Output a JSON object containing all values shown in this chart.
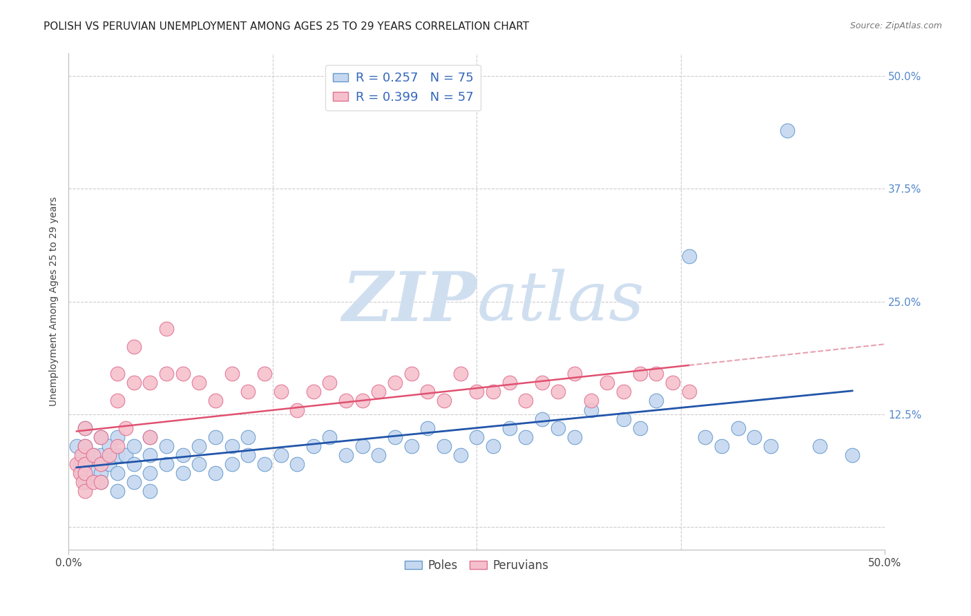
{
  "title": "POLISH VS PERUVIAN UNEMPLOYMENT AMONG AGES 25 TO 29 YEARS CORRELATION CHART",
  "source": "Source: ZipAtlas.com",
  "ylabel": "Unemployment Among Ages 25 to 29 years",
  "xlim": [
    0.0,
    0.5
  ],
  "ylim": [
    -0.025,
    0.525
  ],
  "yticks_right": [
    0.0,
    0.125,
    0.25,
    0.375,
    0.5
  ],
  "ytick_labels_right": [
    "",
    "12.5%",
    "25.0%",
    "37.5%",
    "50.0%"
  ],
  "grid_color": "#cccccc",
  "background_color": "#ffffff",
  "poles_color": "#c5d8f0",
  "poles_edge_color": "#6699cc",
  "peruvians_color": "#f5c0cc",
  "peruvians_edge_color": "#e07090",
  "trend_poles_color": "#2255aa",
  "trend_peruvians_solid_color": "#e05070",
  "trend_peruvians_dash_color": "#e8a0b0",
  "legend_r_poles": "R = 0.257",
  "legend_n_poles": "N = 75",
  "legend_r_peruvians": "R = 0.399",
  "legend_n_peruvians": "N = 57",
  "watermark_zip": "ZIP",
  "watermark_atlas": "atlas",
  "watermark_color": "#d0dff0",
  "title_fontsize": 11,
  "axis_label_fontsize": 10,
  "tick_fontsize": 11,
  "poles_x": [
    0.005,
    0.007,
    0.008,
    0.009,
    0.01,
    0.01,
    0.01,
    0.01,
    0.01,
    0.015,
    0.015,
    0.02,
    0.02,
    0.02,
    0.02,
    0.02,
    0.025,
    0.025,
    0.03,
    0.03,
    0.03,
    0.03,
    0.035,
    0.04,
    0.04,
    0.04,
    0.05,
    0.05,
    0.05,
    0.05,
    0.06,
    0.06,
    0.07,
    0.07,
    0.08,
    0.08,
    0.09,
    0.09,
    0.1,
    0.1,
    0.11,
    0.11,
    0.12,
    0.13,
    0.14,
    0.15,
    0.16,
    0.17,
    0.18,
    0.19,
    0.2,
    0.21,
    0.22,
    0.23,
    0.24,
    0.25,
    0.26,
    0.27,
    0.28,
    0.29,
    0.3,
    0.31,
    0.32,
    0.34,
    0.35,
    0.36,
    0.38,
    0.39,
    0.4,
    0.41,
    0.42,
    0.43,
    0.44,
    0.46,
    0.48
  ],
  "poles_y": [
    0.09,
    0.07,
    0.06,
    0.08,
    0.11,
    0.09,
    0.07,
    0.06,
    0.05,
    0.08,
    0.06,
    0.1,
    0.08,
    0.07,
    0.06,
    0.05,
    0.09,
    0.07,
    0.1,
    0.08,
    0.06,
    0.04,
    0.08,
    0.09,
    0.07,
    0.05,
    0.1,
    0.08,
    0.06,
    0.04,
    0.09,
    0.07,
    0.08,
    0.06,
    0.09,
    0.07,
    0.1,
    0.06,
    0.09,
    0.07,
    0.1,
    0.08,
    0.07,
    0.08,
    0.07,
    0.09,
    0.1,
    0.08,
    0.09,
    0.08,
    0.1,
    0.09,
    0.11,
    0.09,
    0.08,
    0.1,
    0.09,
    0.11,
    0.1,
    0.12,
    0.11,
    0.1,
    0.13,
    0.12,
    0.11,
    0.14,
    0.3,
    0.1,
    0.09,
    0.11,
    0.1,
    0.09,
    0.44,
    0.09,
    0.08
  ],
  "peruvians_x": [
    0.005,
    0.007,
    0.008,
    0.009,
    0.01,
    0.01,
    0.01,
    0.01,
    0.01,
    0.015,
    0.015,
    0.02,
    0.02,
    0.02,
    0.025,
    0.03,
    0.03,
    0.03,
    0.035,
    0.04,
    0.04,
    0.05,
    0.05,
    0.06,
    0.06,
    0.07,
    0.08,
    0.09,
    0.1,
    0.11,
    0.12,
    0.13,
    0.14,
    0.15,
    0.16,
    0.17,
    0.18,
    0.19,
    0.2,
    0.21,
    0.22,
    0.23,
    0.24,
    0.25,
    0.26,
    0.27,
    0.28,
    0.29,
    0.3,
    0.31,
    0.32,
    0.33,
    0.34,
    0.35,
    0.36,
    0.37,
    0.38
  ],
  "peruvians_y": [
    0.07,
    0.06,
    0.08,
    0.05,
    0.11,
    0.09,
    0.07,
    0.06,
    0.04,
    0.08,
    0.05,
    0.1,
    0.07,
    0.05,
    0.08,
    0.17,
    0.14,
    0.09,
    0.11,
    0.2,
    0.16,
    0.16,
    0.1,
    0.22,
    0.17,
    0.17,
    0.16,
    0.14,
    0.17,
    0.15,
    0.17,
    0.15,
    0.13,
    0.15,
    0.16,
    0.14,
    0.14,
    0.15,
    0.16,
    0.17,
    0.15,
    0.14,
    0.17,
    0.15,
    0.15,
    0.16,
    0.14,
    0.16,
    0.15,
    0.17,
    0.14,
    0.16,
    0.15,
    0.17,
    0.17,
    0.16,
    0.15
  ]
}
